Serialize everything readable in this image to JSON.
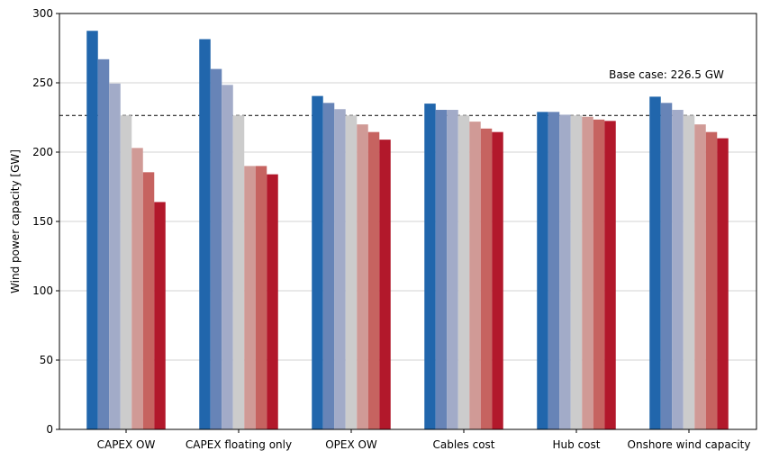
{
  "chart_data": {
    "type": "bar",
    "title": "",
    "xlabel": "",
    "ylabel": "Wind power capacity [GW]",
    "ylim": [
      0,
      300
    ],
    "yticks": [
      0,
      50,
      100,
      150,
      200,
      250,
      300
    ],
    "grid": "horizontal",
    "categories": [
      "CAPEX OW",
      "CAPEX floating only",
      "OPEX OW",
      "Cables cost",
      "Hub cost",
      "Onshore wind capacity"
    ],
    "series_colors": [
      "#2166ac",
      "#6784b7",
      "#a2abc8",
      "#cccccc",
      "#d09a96",
      "#c66360",
      "#b2182b"
    ],
    "series": [
      {
        "values": [
          287.5,
          281.5,
          240.5,
          235.0,
          229.0,
          240.0
        ]
      },
      {
        "values": [
          267.0,
          260.0,
          235.5,
          230.5,
          229.0,
          235.5
        ]
      },
      {
        "values": [
          249.5,
          248.5,
          231.0,
          230.5,
          227.0,
          230.5
        ]
      },
      {
        "values": [
          226.5,
          226.5,
          226.5,
          226.5,
          226.5,
          226.5
        ]
      },
      {
        "values": [
          203.0,
          190.0,
          220.0,
          222.0,
          225.5,
          220.0
        ]
      },
      {
        "values": [
          185.5,
          190.0,
          214.5,
          217.0,
          223.5,
          214.5
        ]
      },
      {
        "values": [
          164.0,
          184.0,
          209.0,
          214.5,
          222.5,
          210.0
        ]
      }
    ],
    "reference_line": {
      "value": 226.5,
      "label": "Base case: 226.5 GW",
      "color": "#000000",
      "style": "dashed"
    }
  }
}
